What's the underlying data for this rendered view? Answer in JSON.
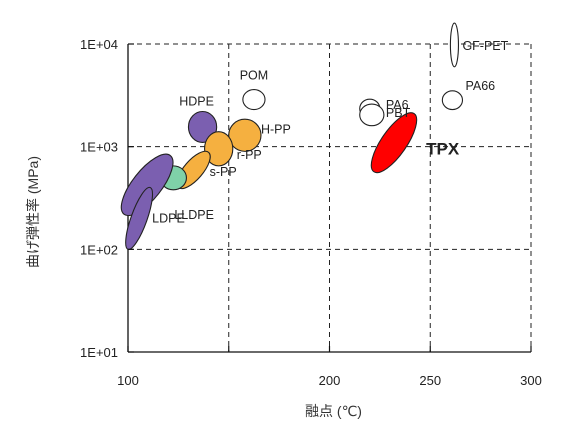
{
  "chart_data": {
    "type": "scatter",
    "title": "",
    "xlabel": "融点 (℃)",
    "ylabel": "曲げ弾性率 (MPa)",
    "xlim": [
      100,
      300
    ],
    "ylim": [
      10,
      10000
    ],
    "yscale": "log",
    "grid": true,
    "x_ticks": [
      100,
      150,
      200,
      250,
      300
    ],
    "x_tick_labels": [
      "100",
      "",
      "200",
      "250",
      "300"
    ],
    "y_ticks": [
      10,
      100,
      1000,
      10000
    ],
    "y_tick_labels": [
      "1E+01",
      "1E+02",
      "1E+03",
      "1E+04"
    ],
    "points": [
      {
        "label": "GF-PET",
        "x_range": [
          260,
          264
        ],
        "y_range": [
          6000,
          16000
        ],
        "color": "#ffffff"
      },
      {
        "label": "PA66",
        "x_range": [
          256,
          266
        ],
        "y_range": [
          2300,
          3500
        ],
        "color": "#ffffff"
      },
      {
        "label": "POM",
        "x_range": [
          157,
          168
        ],
        "y_range": [
          2300,
          3600
        ],
        "color": "#ffffff"
      },
      {
        "label": "PA6",
        "x_range": [
          215,
          225
        ],
        "y_range": [
          1900,
          2900
        ],
        "color": "#ffffff"
      },
      {
        "label": "PBT",
        "x_range": [
          215,
          227
        ],
        "y_range": [
          1600,
          2600
        ],
        "color": "#ffffff"
      },
      {
        "label": "TPX",
        "x_range": [
          222,
          242
        ],
        "y_range": [
          570,
          2100
        ],
        "color": "#ff0000"
      },
      {
        "label": "HDPE",
        "x_range": [
          130,
          144
        ],
        "y_range": [
          1100,
          2200
        ],
        "color": "#7b5fb0"
      },
      {
        "label": "H-PP",
        "x_range": [
          150,
          166
        ],
        "y_range": [
          900,
          1850
        ],
        "color": "#f5b040"
      },
      {
        "label": "r-PP",
        "x_range": [
          138,
          152
        ],
        "y_range": [
          650,
          1400
        ],
        "color": "#f5b040"
      },
      {
        "label": "s-PP",
        "x_range": [
          125,
          140
        ],
        "y_range": [
          400,
          880
        ],
        "color": "#f5b040"
      },
      {
        "label": "",
        "x_range": [
          116,
          129
        ],
        "y_range": [
          380,
          650
        ],
        "color": "#7fd1a8"
      },
      {
        "label": "LLDPE",
        "x_range": [
          98,
          121
        ],
        "y_range": [
          220,
          820
        ],
        "color": "#7b5fb0"
      },
      {
        "label": "LDPE",
        "x_range": [
          100,
          111
        ],
        "y_range": [
          100,
          400
        ],
        "color": "#7b5fb0"
      }
    ]
  }
}
